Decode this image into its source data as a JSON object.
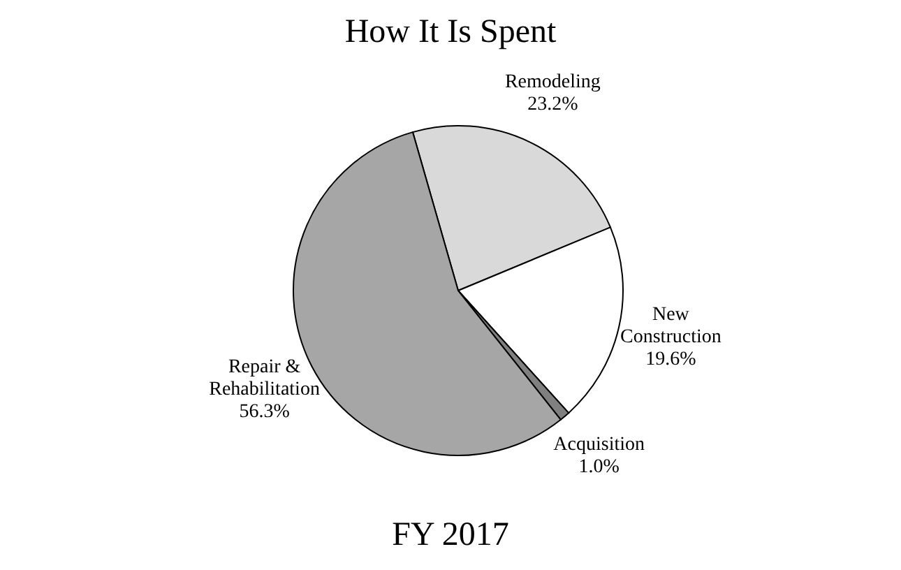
{
  "chart_data": {
    "type": "pie",
    "title": "How It Is Spent",
    "categories": [
      "Remodeling",
      "New Construction",
      "Acquisition",
      "Repair & Rehabilitation"
    ],
    "values": [
      23.2,
      19.6,
      1.0,
      56.3
    ],
    "colors": [
      "#d9d9d9",
      "#ffffff",
      "#808080",
      "#a6a6a6"
    ],
    "value_labels": [
      "23.2%",
      "19.6%",
      "1.0%",
      "56.3%"
    ],
    "annotations": [
      "FY 2017"
    ]
  }
}
